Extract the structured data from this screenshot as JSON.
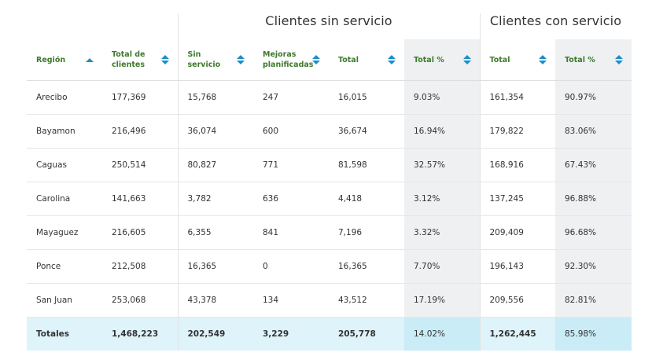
{
  "groups": {
    "without_service": "Clientes sin servicio",
    "with_service": "Clientes con servicio"
  },
  "headers": [
    {
      "label": "Región",
      "sort": "up"
    },
    {
      "label": "Total de clientes",
      "sort": "both"
    },
    {
      "label": "Sin servicio",
      "sort": "both"
    },
    {
      "label": "Mejoras planificadas",
      "sort": "both"
    },
    {
      "label": "Total",
      "sort": "both"
    },
    {
      "label": "Total %",
      "sort": "both"
    },
    {
      "label": "Total",
      "sort": "both"
    },
    {
      "label": "Total %",
      "sort": "both"
    }
  ],
  "rows": [
    [
      "Arecibo",
      "177,369",
      "15,768",
      "247",
      "16,015",
      "9.03%",
      "161,354",
      "90.97%"
    ],
    [
      "Bayamon",
      "216,496",
      "36,074",
      "600",
      "36,674",
      "16.94%",
      "179,822",
      "83.06%"
    ],
    [
      "Caguas",
      "250,514",
      "80,827",
      "771",
      "81,598",
      "32.57%",
      "168,916",
      "67.43%"
    ],
    [
      "Carolina",
      "141,663",
      "3,782",
      "636",
      "4,418",
      "3.12%",
      "137,245",
      "96.88%"
    ],
    [
      "Mayaguez",
      "216,605",
      "6,355",
      "841",
      "7,196",
      "3.32%",
      "209,409",
      "96.68%"
    ],
    [
      "Ponce",
      "212,508",
      "16,365",
      "0",
      "16,365",
      "7.70%",
      "196,143",
      "92.30%"
    ],
    [
      "San Juan",
      "253,068",
      "43,378",
      "134",
      "43,512",
      "17.19%",
      "209,556",
      "82.81%"
    ]
  ],
  "totals": [
    "Totales",
    "1,468,223",
    "202,549",
    "3,229",
    "205,778",
    "14.02%",
    "1,262,445",
    "85.98%"
  ],
  "colors": {
    "header_text": "#3d7a2b",
    "sort_icon": "#1a8fc9",
    "shade": "#eef0f2",
    "totals_bg": "#dff3fa",
    "totals_shade": "#c9ecf7"
  }
}
